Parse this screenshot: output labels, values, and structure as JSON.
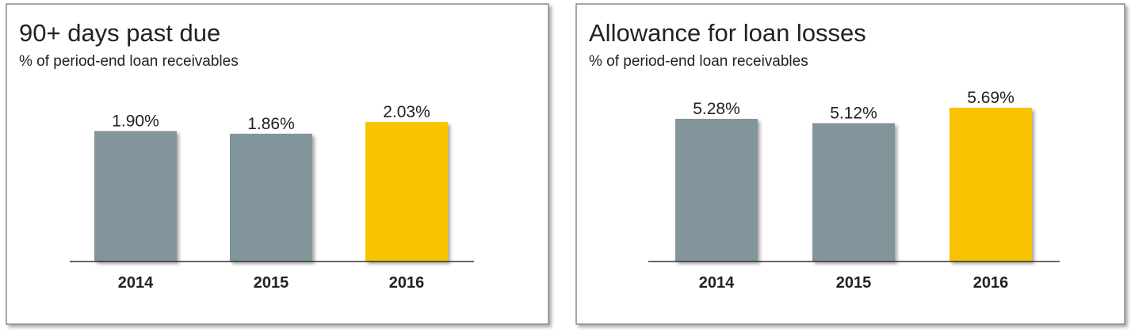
{
  "chart_data": [
    {
      "type": "bar",
      "title": "90+ days past due",
      "subtitle": "% of period-end loan receivables",
      "categories": [
        "2014",
        "2015",
        "2016"
      ],
      "values": [
        1.9,
        1.86,
        2.03
      ],
      "value_labels": [
        "1.90%",
        "1.86%",
        "2.03%"
      ],
      "colors": [
        "#82959a",
        "#82959a",
        "#f8c300"
      ],
      "ylim": [
        0,
        2.4
      ]
    },
    {
      "type": "bar",
      "title": "Allowance for loan losses",
      "subtitle": "% of period-end loan receivables",
      "categories": [
        "2014",
        "2015",
        "2016"
      ],
      "values": [
        5.28,
        5.12,
        5.69
      ],
      "value_labels": [
        "5.28%",
        "5.12%",
        "5.69%"
      ],
      "colors": [
        "#82959a",
        "#82959a",
        "#f8c300"
      ],
      "ylim": [
        0,
        6.1
      ]
    }
  ]
}
